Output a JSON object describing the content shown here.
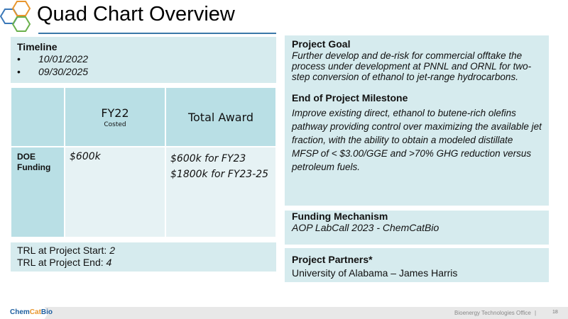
{
  "header": {
    "title": "Quad Chart Overview"
  },
  "timeline": {
    "heading": "Timeline",
    "dates": [
      "10/01/2022",
      "09/30/2025"
    ]
  },
  "funding_table": {
    "headers": [
      "",
      "FY22",
      "Total Award"
    ],
    "fy22_sub": "Costed",
    "row_label": "DOE Funding",
    "fy22_value": "$600k",
    "total_award": [
      "$600k for FY23",
      "$1800k for FY23-25"
    ]
  },
  "trl": {
    "start_label": "TRL at Project Start: ",
    "start_value": "2",
    "end_label": "TRL at Project End: ",
    "end_value": "4"
  },
  "goal": {
    "heading": "Project Goal",
    "text": "Further develop and de-risk for commercial offtake the process under development at PNNL and ORNL for two-step conversion of ethanol to jet-range hydrocarbons."
  },
  "milestone": {
    "heading": "End of Project Milestone",
    "text": "Improve existing direct, ethanol to butene-rich olefins pathway providing control over maximizing the available jet fraction, with the ability to obtain a modeled distillate MFSP of < $3.00/GGE and >70% GHG reduction versus petroleum fuels."
  },
  "funding_mechanism": {
    "heading": "Funding Mechanism",
    "text": "AOP LabCall 2023 - ChemCatBio"
  },
  "partners": {
    "heading": "Project Partners*",
    "text": "University of Alabama – James Harris"
  },
  "footer": {
    "logo_a": "Chem",
    "logo_b": "Cat",
    "logo_c": "Bio",
    "office": "Bioenergy Technologies Office",
    "separator": "|",
    "page": "18"
  },
  "colors": {
    "box": "#d6ebee",
    "header_cell": "#b9dfe5",
    "rule": "#3b78a8",
    "hex_orange": "#e8962e",
    "hex_blue": "#3b78b8",
    "hex_green": "#6ab04c"
  }
}
